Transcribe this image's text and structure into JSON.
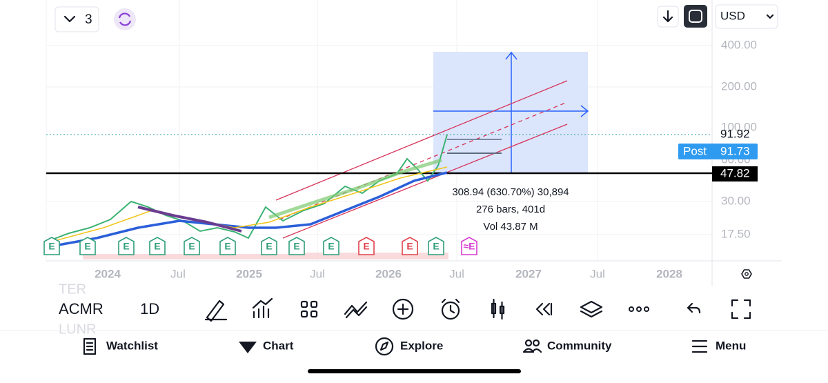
{
  "header": {
    "layout_count": "3",
    "currency": "USD"
  },
  "price_axis": {
    "labels": [
      "400.00",
      "200.00",
      "100.00",
      "60.00",
      "30.00",
      "17.50"
    ],
    "last_price": "91.92",
    "post_label": "Post",
    "post_price": "91.73",
    "line_price": "47.82"
  },
  "time_axis": {
    "labels": [
      "2024",
      "Jul",
      "2025",
      "Jul",
      "2026",
      "Jul",
      "2027",
      "Jul",
      "2028"
    ]
  },
  "measure": {
    "lines": [
      "308.94 (630.70%) 30,894",
      "276 bars, 401d",
      "Vol 43.87 M"
    ]
  },
  "earnings": [
    {
      "label": "E",
      "color": "#2e9e7a"
    },
    {
      "label": "E",
      "color": "#2e9e7a"
    },
    {
      "label": "E",
      "color": "#2e9e7a"
    },
    {
      "label": "E",
      "color": "#2e9e7a"
    },
    {
      "label": "E",
      "color": "#2e9e7a"
    },
    {
      "label": "E",
      "color": "#2e9e7a"
    },
    {
      "label": "E",
      "color": "#2e9e7a"
    },
    {
      "label": "E",
      "color": "#2e9e7a"
    },
    {
      "label": "E",
      "color": "#2e9e7a"
    },
    {
      "label": "E",
      "color": "#e0424b"
    },
    {
      "label": "E",
      "color": "#e0424b"
    },
    {
      "label": "E",
      "color": "#2e9e7a"
    },
    {
      "label": "≈E",
      "color": "#d63bd1"
    }
  ],
  "toolbar": {
    "symbol": "ACMR",
    "interval": "1D",
    "watch_above": "TER",
    "watch_below": "LUNR"
  },
  "nav": [
    "Watchlist",
    "Chart",
    "Explore",
    "Community",
    "Menu"
  ]
}
